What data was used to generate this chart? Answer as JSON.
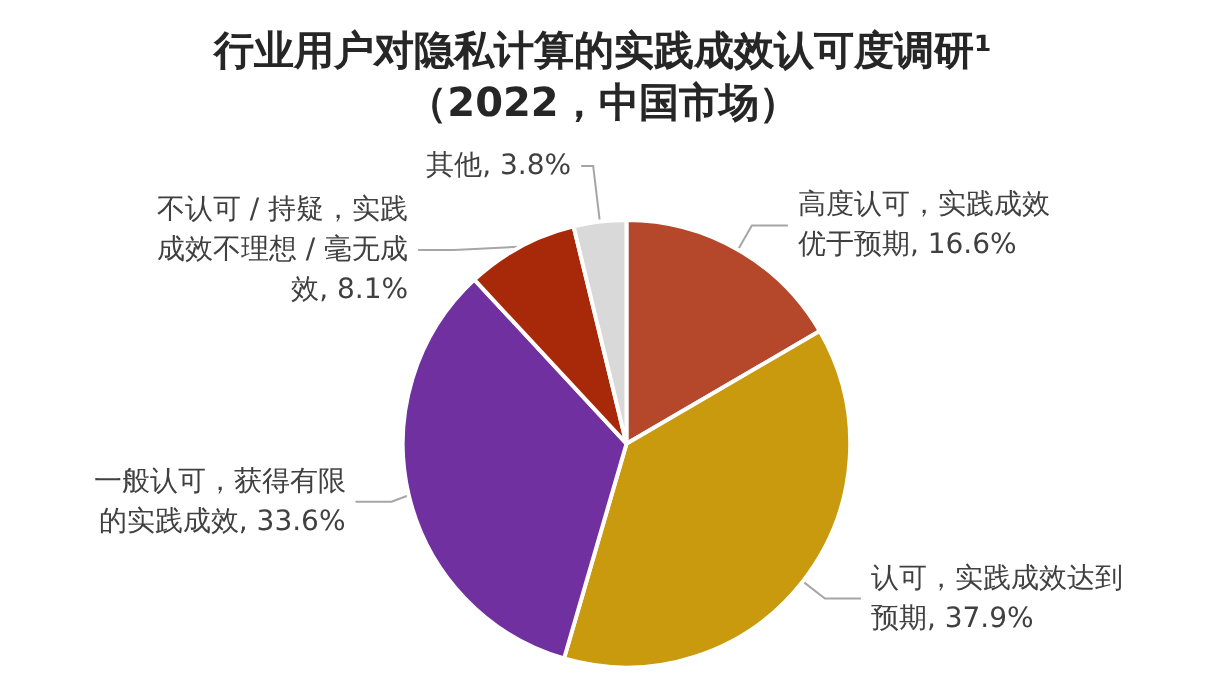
{
  "chart_data": {
    "type": "pie",
    "title": "行业用户对隐私计算的实践成效认可度调研¹",
    "subtitle": "（2022，中国市场）",
    "categories": [
      "高度认可，实践成效优于预期",
      "认可，实践成效达到预期",
      "一般认可，获得有限的实践成效",
      "不认可 / 持疑，实践成效不理想 / 毫无成效",
      "其他"
    ],
    "values": [
      16.6,
      37.9,
      33.6,
      8.1,
      3.8
    ],
    "value_labels": [
      "16.6%",
      "37.9%",
      "33.6%",
      "8.1%",
      "3.8%"
    ],
    "colors": [
      "#b5472b",
      "#c99a0e",
      "#7030a0",
      "#a8290a",
      "#d9d9d9"
    ],
    "legend": false
  }
}
